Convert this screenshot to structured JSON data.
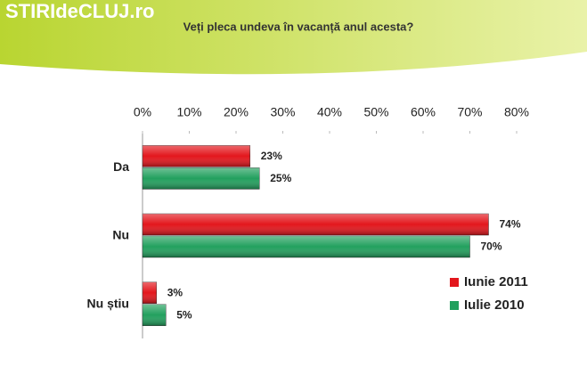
{
  "chart_data": {
    "type": "barh",
    "watermark": "STIRIdeCLUJ.ro",
    "title": "Veți pleca undeva în vacanță anul acesta?",
    "categories": [
      "Da",
      "Nu",
      "Nu știu"
    ],
    "series": [
      {
        "name": "Iunie 2011",
        "color": "#e3161c",
        "values": [
          23,
          74,
          3
        ],
        "value_labels": [
          "23%",
          "74%",
          "3%"
        ]
      },
      {
        "name": "Iulie 2010",
        "color": "#22a05e",
        "values": [
          25,
          70,
          5
        ],
        "value_labels": [
          "25%",
          "70%",
          "5%"
        ]
      }
    ],
    "xlim": [
      0,
      80
    ],
    "xticks": [
      {
        "value": 0,
        "label": "0%"
      },
      {
        "value": 10,
        "label": "10%"
      },
      {
        "value": 20,
        "label": "20%"
      },
      {
        "value": 30,
        "label": "30%"
      },
      {
        "value": 40,
        "label": "40%"
      },
      {
        "value": 50,
        "label": "50%"
      },
      {
        "value": 60,
        "label": "60%"
      },
      {
        "value": 70,
        "label": "70%"
      },
      {
        "value": 80,
        "label": "80%"
      }
    ],
    "legend": "lower right"
  }
}
